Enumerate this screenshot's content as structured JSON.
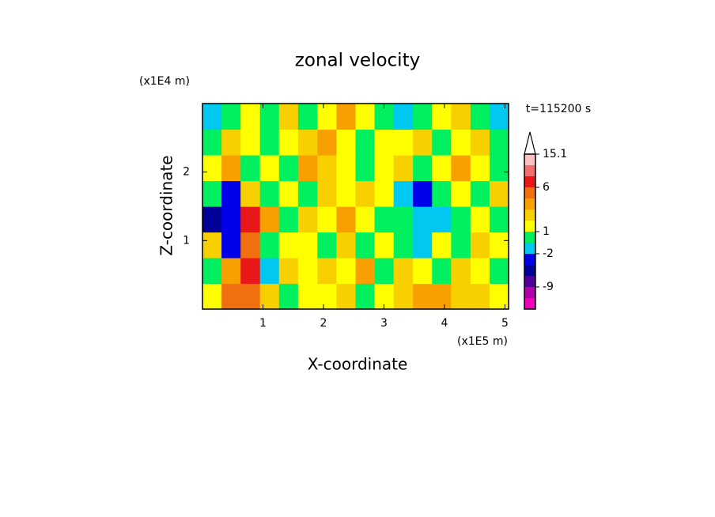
{
  "chart_data": {
    "type": "contour",
    "title": "zonal velocity",
    "xlabel": "X-coordinate",
    "ylabel": "Z-coordinate",
    "x_unit": "(x1E5 m)",
    "y_unit": "(x1E4 m)",
    "annotation": "t=115200 s",
    "xlim": [
      0,
      5.06
    ],
    "ylim": [
      0,
      3
    ],
    "xticks": [
      1,
      2,
      3,
      4,
      5
    ],
    "yticks": [
      1,
      2
    ],
    "x": [
      0.16,
      0.47,
      0.79,
      1.11,
      1.42,
      1.74,
      2.06,
      2.37,
      2.69,
      3.0,
      3.32,
      3.64,
      3.95,
      4.27,
      4.59,
      4.9
    ],
    "y": [
      0.19,
      0.56,
      0.94,
      1.31,
      1.69,
      2.06,
      2.44,
      2.81
    ],
    "z": [
      [
        1.5,
        5,
        5,
        2.5,
        0,
        1.5,
        1.5,
        2.5,
        0,
        1.5,
        2.5,
        3.5,
        3.5,
        2.5,
        2.5,
        1.5
      ],
      [
        0,
        3.5,
        6.5,
        -1.5,
        2.5,
        1.5,
        2.5,
        1.5,
        3.5,
        0,
        2.5,
        1.5,
        0,
        2.5,
        1.5,
        0
      ],
      [
        2.5,
        -2.5,
        5,
        0,
        1.5,
        1.5,
        0,
        2.5,
        0,
        1.5,
        0,
        -1.5,
        1.5,
        0,
        2.5,
        1.5
      ],
      [
        -5,
        -3,
        8,
        3.5,
        0,
        2.5,
        1.5,
        3.5,
        1.5,
        0,
        0,
        -1.5,
        -1.5,
        0,
        1.5,
        0
      ],
      [
        0,
        -3,
        2.5,
        0,
        1.5,
        0,
        2.5,
        1.5,
        2.5,
        1.5,
        -1.5,
        -3,
        0,
        1.5,
        0,
        2.5
      ],
      [
        1.5,
        3.5,
        0,
        1.5,
        0,
        3.5,
        2.5,
        1.5,
        0,
        1.5,
        2.5,
        0,
        1.5,
        3.5,
        1.5,
        0
      ],
      [
        0,
        2.5,
        1.5,
        0,
        1.5,
        2.5,
        3.5,
        1.5,
        0,
        1.5,
        1.5,
        2.5,
        0,
        1.5,
        2.5,
        0
      ],
      [
        -1.5,
        0,
        1.5,
        0,
        2.5,
        0,
        1.5,
        3.5,
        1.5,
        0,
        -1.5,
        0,
        1.5,
        2.5,
        0,
        -1.5
      ]
    ],
    "levels": [
      -15,
      -12,
      -9,
      -6,
      -4,
      -2,
      -1,
      1,
      2,
      3,
      4,
      6,
      9,
      12,
      15.1
    ],
    "colors": [
      "#f000b8",
      "#b000a8",
      "#500098",
      "#000098",
      "#0000e8",
      "#00c8f0",
      "#00f060",
      "#ffff00",
      "#f8d000",
      "#f8a000",
      "#f07010",
      "#e81818",
      "#f07070",
      "#f8c0c0"
    ],
    "colorbar_ticks": [
      -9,
      -2,
      1,
      6,
      15.1
    ]
  }
}
